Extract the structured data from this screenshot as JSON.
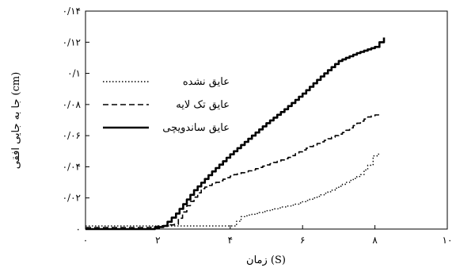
{
  "chart_data": {
    "type": "line",
    "xlabel": "زمان (S)",
    "ylabel": "جا به جایی افقی (cm)",
    "xlim": [
      0,
      10
    ],
    "ylim": [
      0,
      0.14
    ],
    "x_ticks": [
      0,
      2,
      4,
      6,
      8,
      10
    ],
    "x_tick_labels": [
      "۰",
      "۲",
      "۴",
      "۶",
      "۸",
      "۱۰"
    ],
    "y_ticks": [
      0,
      0.02,
      0.04,
      0.06,
      0.08,
      0.1,
      0.12,
      0.14
    ],
    "y_tick_labels": [
      "۰",
      "۰/۰۲",
      "۰/۰۴",
      "۰/۰۶",
      "۰/۰۸",
      "۰/۱",
      "۰/۱۲",
      "۰/۱۴"
    ],
    "grid": false,
    "legend_position": "upper-left",
    "series": [
      {
        "name": "عایق نشده",
        "style": "dotted",
        "color": "#000000",
        "x": [
          0,
          1.7,
          3.0,
          4.05,
          4.3,
          4.7,
          5.2,
          5.8,
          6.3,
          6.8,
          7.2,
          7.6,
          7.8,
          7.95,
          8.1
        ],
        "y": [
          0.002,
          0.002,
          0.002,
          0.002,
          0.008,
          0.01,
          0.013,
          0.016,
          0.02,
          0.025,
          0.03,
          0.035,
          0.041,
          0.047,
          0.049
        ]
      },
      {
        "name": "عایق تک لایه",
        "style": "dashed",
        "color": "#000000",
        "x": [
          0,
          1.7,
          2.45,
          2.8,
          3.2,
          3.6,
          4.1,
          4.6,
          5.1,
          5.6,
          6.1,
          6.6,
          7.1,
          7.5,
          7.8,
          8.1
        ],
        "y": [
          0.001,
          0.001,
          0.003,
          0.015,
          0.026,
          0.03,
          0.035,
          0.038,
          0.042,
          0.046,
          0.052,
          0.057,
          0.062,
          0.068,
          0.072,
          0.074
        ]
      },
      {
        "name": "عایق ساندویچی",
        "style": "solid",
        "color": "#000000",
        "x": [
          0,
          1.8,
          2.15,
          2.5,
          3.0,
          3.5,
          4.0,
          4.5,
          5.0,
          5.5,
          6.0,
          6.5,
          7.0,
          7.5,
          8.0,
          8.25
        ],
        "y": [
          0,
          0,
          0.002,
          0.01,
          0.025,
          0.037,
          0.048,
          0.058,
          0.068,
          0.077,
          0.087,
          0.098,
          0.108,
          0.113,
          0.117,
          0.123
        ]
      }
    ]
  }
}
